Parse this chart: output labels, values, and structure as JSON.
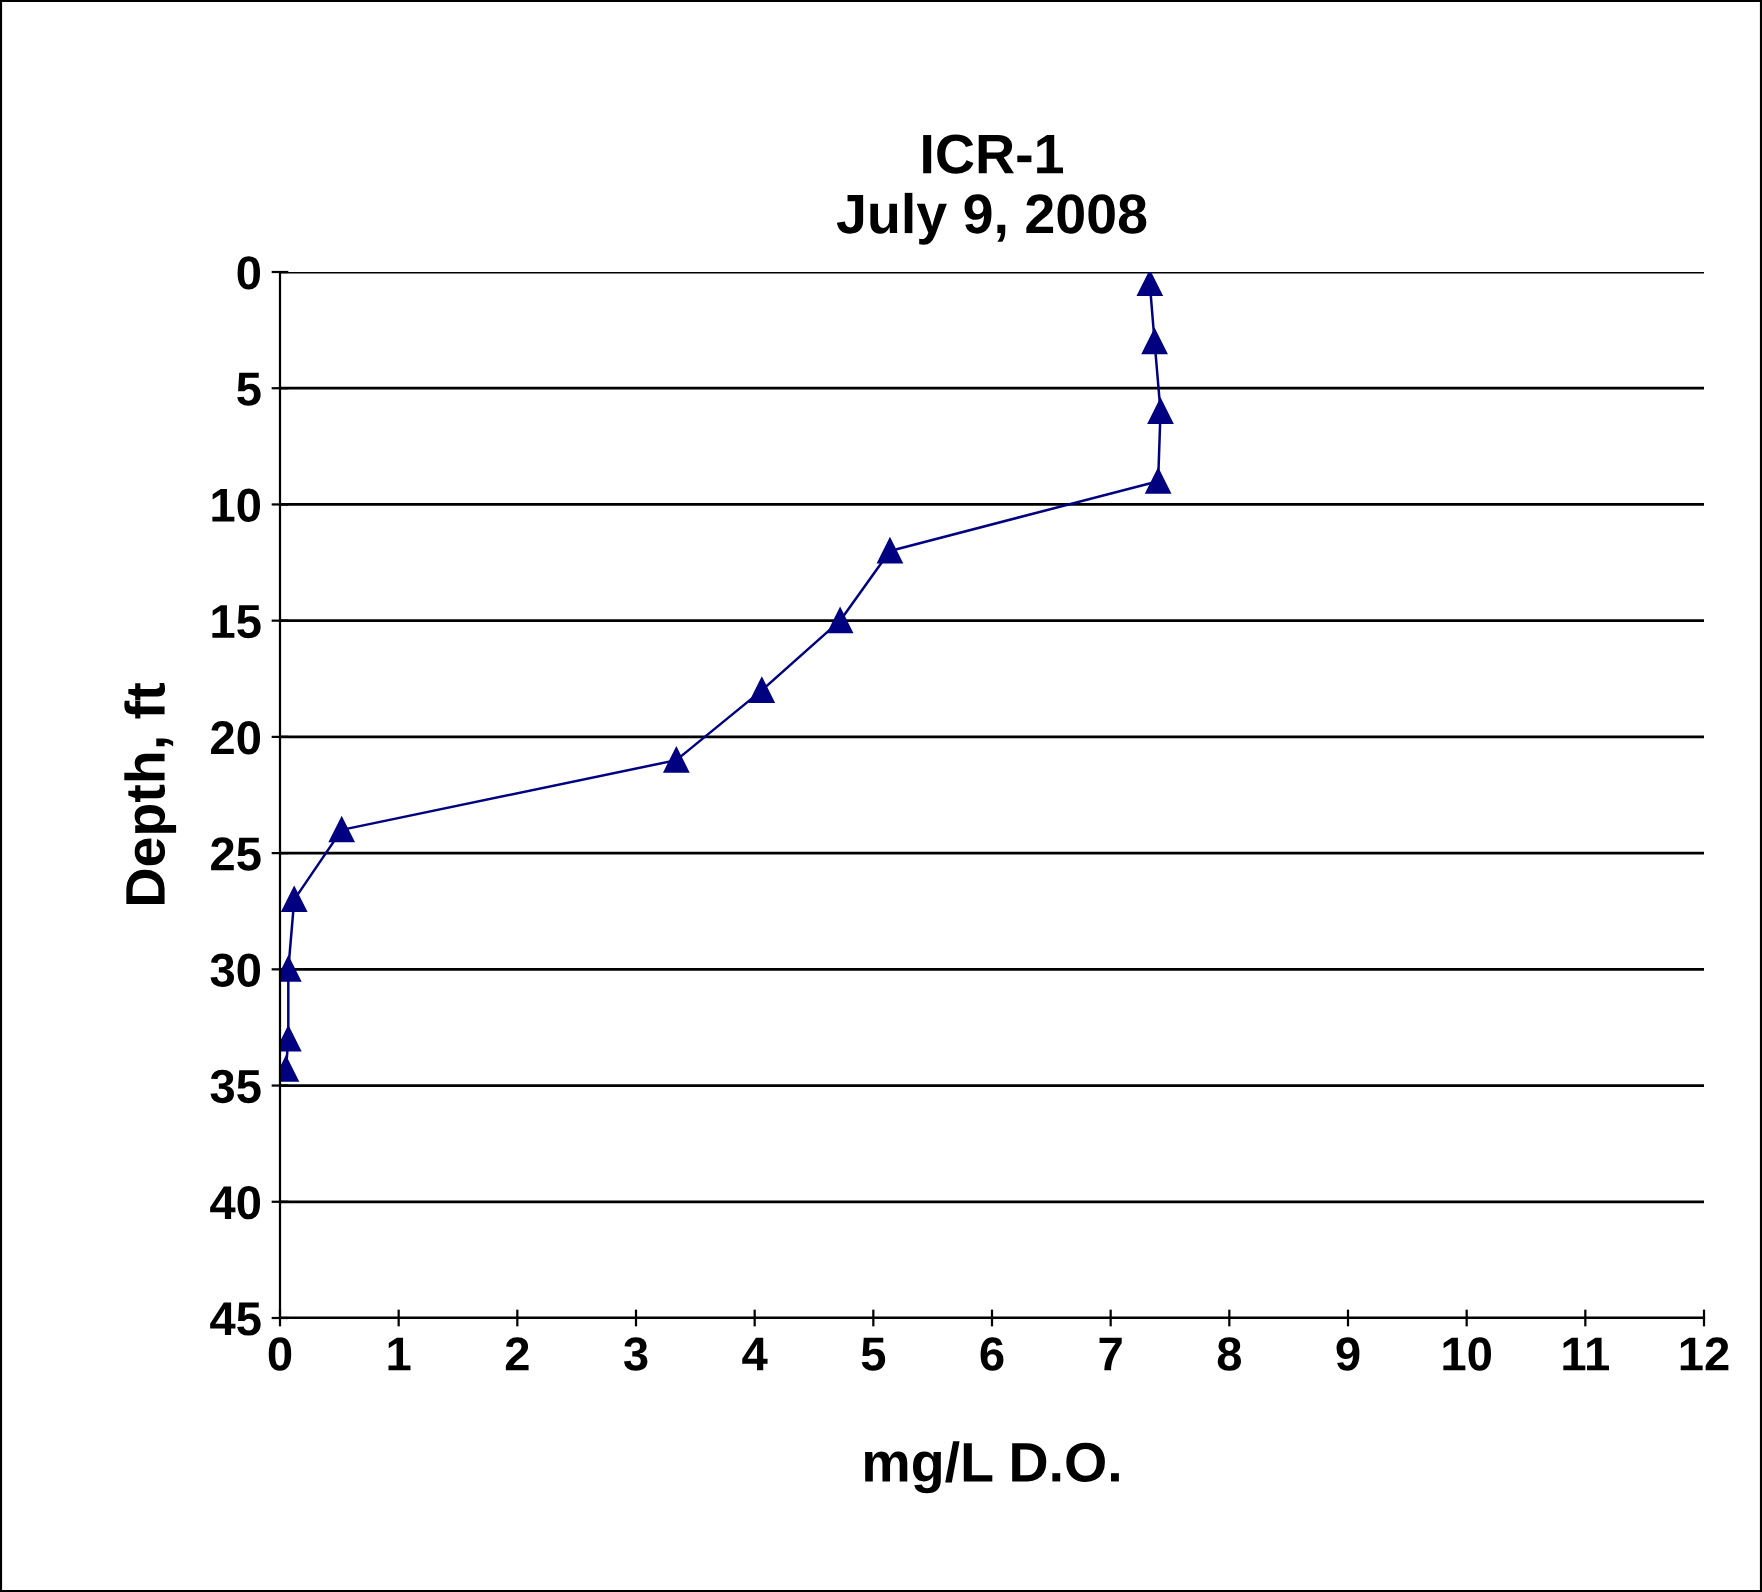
{
  "chart_data": {
    "type": "line",
    "title": "ICR-1\nJuly 9, 2008",
    "xlabel": "mg/L D.O.",
    "ylabel": "Depth, ft",
    "series": [
      {
        "color": "#000080",
        "x": [
          7.33,
          7.37,
          7.42,
          7.4,
          5.14,
          4.72,
          4.06,
          3.34,
          0.52,
          0.12,
          0.07,
          0.07,
          0.05
        ],
        "values": [
          0.5,
          3,
          6,
          9,
          12,
          15,
          18,
          21,
          24,
          27,
          30,
          33,
          34.3
        ]
      }
    ],
    "xlim": [
      0,
      12
    ],
    "xticks": [
      0,
      1,
      2,
      3,
      4,
      5,
      6,
      7,
      8,
      9,
      10,
      11,
      12
    ],
    "ylim": [
      45,
      0
    ],
    "yticks": [
      0,
      5,
      10,
      15,
      20,
      25,
      30,
      35,
      40,
      45
    ],
    "grid": "y",
    "marker": "triangle",
    "line_style": "solid",
    "legend": false
  }
}
